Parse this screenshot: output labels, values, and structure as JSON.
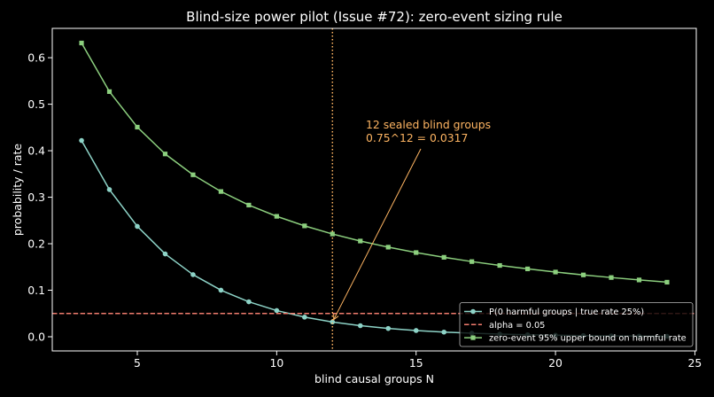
{
  "chart_data": {
    "type": "line",
    "title": "Blind-size power pilot (Issue #72): zero-event sizing rule",
    "xlabel": "blind causal groups N",
    "ylabel": "probability / rate",
    "xlim": [
      1.95,
      25.05
    ],
    "ylim": [
      -0.0305,
      0.6631
    ],
    "x_ticks": [
      "5",
      "10",
      "15",
      "20",
      "25"
    ],
    "y_ticks": [
      "0.0",
      "0.1",
      "0.2",
      "0.3",
      "0.4",
      "0.5",
      "0.6"
    ],
    "grid": false,
    "background": "#000000",
    "legend": {
      "placement": "lower right"
    },
    "x": [
      3,
      4,
      5,
      6,
      7,
      8,
      9,
      10,
      11,
      12,
      13,
      14,
      15,
      16,
      17,
      18,
      19,
      20,
      21,
      22,
      23,
      24
    ],
    "series": [
      {
        "name": "P(0 harmful groups | true rate 25%)",
        "color": "#8dd3c7",
        "marker": "circle",
        "linestyle": "solid",
        "values": [
          0.4219,
          0.3164,
          0.2373,
          0.178,
          0.1335,
          0.1001,
          0.0751,
          0.0563,
          0.0422,
          0.0317,
          0.0238,
          0.0178,
          0.0134,
          0.01,
          0.0075,
          0.0056,
          0.0042,
          0.0032,
          0.0024,
          0.0018,
          0.0013,
          0.001
        ]
      },
      {
        "name": "zero-event 95% upper bound on harmful rate",
        "color": "#8ccf7e",
        "marker": "square",
        "linestyle": "solid",
        "values": [
          0.6316,
          0.5271,
          0.4507,
          0.393,
          0.3482,
          0.3123,
          0.2831,
          0.2589,
          0.2384,
          0.2209,
          0.2058,
          0.1926,
          0.181,
          0.1708,
          0.1616,
          0.1533,
          0.1459,
          0.1391,
          0.1329,
          0.1273,
          0.1221,
          0.1173
        ]
      }
    ],
    "reference_lines": [
      {
        "name": "alpha = 0.05",
        "orientation": "horizontal",
        "value": 0.05,
        "color": "#f07b6e",
        "linestyle": "dashed"
      },
      {
        "orientation": "vertical",
        "value": 12,
        "color": "#fdb462",
        "linestyle": "dotted"
      }
    ],
    "annotation": {
      "lines": [
        "12 sealed blind groups",
        "0.75^12 = 0.0317"
      ],
      "target": {
        "x": 12,
        "y": 0.0317
      },
      "color": "#fdb462"
    }
  }
}
